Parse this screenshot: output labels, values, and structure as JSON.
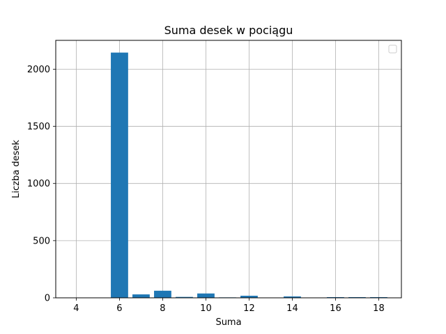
{
  "chart_data": {
    "type": "bar",
    "title": "Suma desek w pociągu",
    "xlabel": "Suma",
    "ylabel": "Liczba desek",
    "x": [
      6,
      7,
      8,
      9,
      10,
      11,
      12,
      14,
      16,
      17,
      18
    ],
    "values": [
      2145,
      30,
      62,
      8,
      38,
      4,
      18,
      12,
      6,
      6,
      6
    ],
    "xlim": [
      3.05,
      19.05
    ],
    "ylim": [
      0,
      2252
    ],
    "xticks": [
      4,
      6,
      8,
      10,
      12,
      14,
      16,
      18
    ],
    "yticks": [
      0,
      500,
      1000,
      1500,
      2000
    ],
    "bar_width": 0.8,
    "bar_color": "#1f77b4",
    "grid": true,
    "legend": "top-right, empty"
  }
}
